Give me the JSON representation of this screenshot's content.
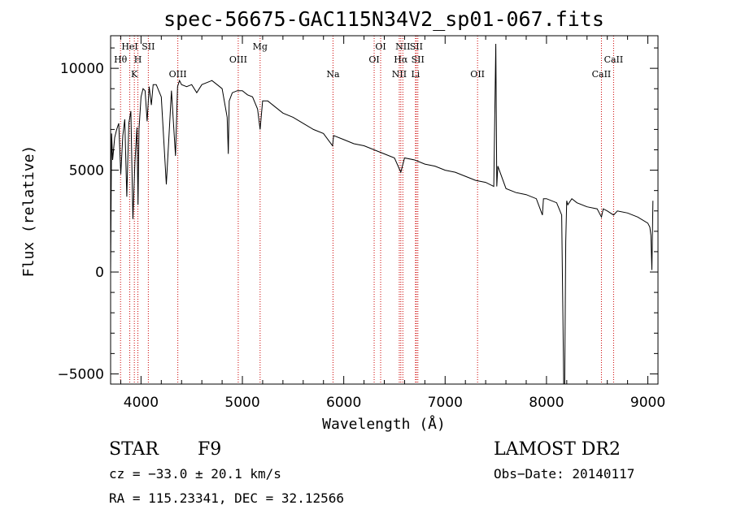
{
  "chart_data": {
    "type": "line",
    "title": "spec-56675-GAC115N34V2_sp01-067.fits",
    "xlabel": "Wavelength (Å)",
    "ylabel": "Flux (relative)",
    "xlim": [
      3700,
      9100
    ],
    "ylim": [
      -5500,
      11600
    ],
    "x_ticks": [
      4000,
      5000,
      6000,
      7000,
      8000,
      9000
    ],
    "y_ticks": [
      -5000,
      0,
      5000,
      10000
    ],
    "grid": false,
    "series": [
      {
        "x": [
          3700,
          3710,
          3720,
          3740,
          3760,
          3780,
          3800,
          3820,
          3840,
          3860,
          3880,
          3900,
          3920,
          3940,
          3960,
          3970,
          3980,
          4000,
          4020,
          4040,
          4060,
          4080,
          4102,
          4120,
          4150,
          4200,
          4250,
          4300,
          4340,
          4360,
          4380,
          4400,
          4450,
          4500,
          4550,
          4600,
          4650,
          4700,
          4750,
          4800,
          4850,
          4861,
          4870,
          4900,
          4950,
          5000,
          5050,
          5100,
          5150,
          5175,
          5200,
          5250,
          5300,
          5400,
          5500,
          5600,
          5700,
          5800,
          5890,
          5900,
          6000,
          6100,
          6200,
          6300,
          6400,
          6500,
          6563,
          6600,
          6700,
          6800,
          6900,
          7000,
          7100,
          7200,
          7300,
          7400,
          7480,
          7500,
          7510,
          7520,
          7600,
          7700,
          7800,
          7900,
          7960,
          7970,
          8000,
          8100,
          8150,
          8170,
          8180,
          8190,
          8200,
          8210,
          8250,
          8300,
          8400,
          8500,
          8542,
          8560,
          8600,
          8662,
          8700,
          8800,
          8900,
          9000,
          9020,
          9030,
          9040,
          9050
        ],
        "y": [
          0,
          6800,
          5500,
          6600,
          7000,
          7300,
          4800,
          6700,
          7500,
          3700,
          7300,
          7900,
          2600,
          5400,
          7100,
          3300,
          7000,
          8600,
          9000,
          8900,
          7400,
          9100,
          8200,
          9200,
          9200,
          8600,
          4300,
          8900,
          5700,
          9100,
          9400,
          9200,
          9100,
          9200,
          8800,
          9200,
          9300,
          9400,
          9200,
          9000,
          7600,
          5800,
          8400,
          8800,
          8900,
          8900,
          8700,
          8600,
          8000,
          7000,
          8400,
          8400,
          8200,
          7800,
          7600,
          7300,
          7000,
          6800,
          6200,
          6700,
          6500,
          6300,
          6200,
          6000,
          5800,
          5600,
          4900,
          5600,
          5500,
          5300,
          5200,
          5000,
          4900,
          4700,
          4500,
          4400,
          4200,
          11200,
          4200,
          5200,
          4100,
          3900,
          3800,
          3600,
          2800,
          3600,
          3600,
          3400,
          2800,
          -5500,
          -5500,
          1500,
          3500,
          3300,
          3600,
          3400,
          3200,
          3100,
          2700,
          3100,
          3000,
          2800,
          3000,
          2900,
          2700,
          2400,
          2200,
          1800,
          100,
          3500
        ]
      }
    ],
    "line_markers": [
      {
        "label": "Hθ",
        "wavelength": 3798,
        "row": 2
      },
      {
        "label": "HeI",
        "wavelength": 3889,
        "row": 1
      },
      {
        "label": "K",
        "wavelength": 3934,
        "row": 3
      },
      {
        "label": "H",
        "wavelength": 3969,
        "row": 2
      },
      {
        "label": "SII",
        "wavelength": 4072,
        "row": 1
      },
      {
        "label": "OIII",
        "wavelength": 4363,
        "row": 3
      },
      {
        "label": "OIII",
        "wavelength": 4959,
        "row": 2
      },
      {
        "label": "Mg",
        "wavelength": 5175,
        "row": 1
      },
      {
        "label": "Na",
        "wavelength": 5894,
        "row": 3
      },
      {
        "label": "OI",
        "wavelength": 6300,
        "row": 2
      },
      {
        "label": "OI",
        "wavelength": 6364,
        "row": 1
      },
      {
        "label": "NII",
        "wavelength": 6548,
        "row": 3
      },
      {
        "label": "NII",
        "wavelength": 6583,
        "row": 1
      },
      {
        "label": "Hα",
        "wavelength": 6563,
        "row": 2
      },
      {
        "label": "Li",
        "wavelength": 6708,
        "row": 3
      },
      {
        "label": "SII",
        "wavelength": 6716,
        "row": 1
      },
      {
        "label": "SII",
        "wavelength": 6731,
        "row": 2
      },
      {
        "label": "OII",
        "wavelength": 7320,
        "row": 3
      },
      {
        "label": "CaII",
        "wavelength": 8542,
        "row": 3
      },
      {
        "label": "CaII",
        "wavelength": 8662,
        "row": 2
      }
    ],
    "line_color": "#000000",
    "marker_color": "#cc0000"
  },
  "info": {
    "class": "STAR",
    "subclass": "F9",
    "survey": "LAMOST DR2",
    "cz": "cz = −33.0 ± 20.1 km/s",
    "obs_date": "Obs−Date: 20140117",
    "coords": "RA = 115.23341, DEC =  32.12566"
  }
}
